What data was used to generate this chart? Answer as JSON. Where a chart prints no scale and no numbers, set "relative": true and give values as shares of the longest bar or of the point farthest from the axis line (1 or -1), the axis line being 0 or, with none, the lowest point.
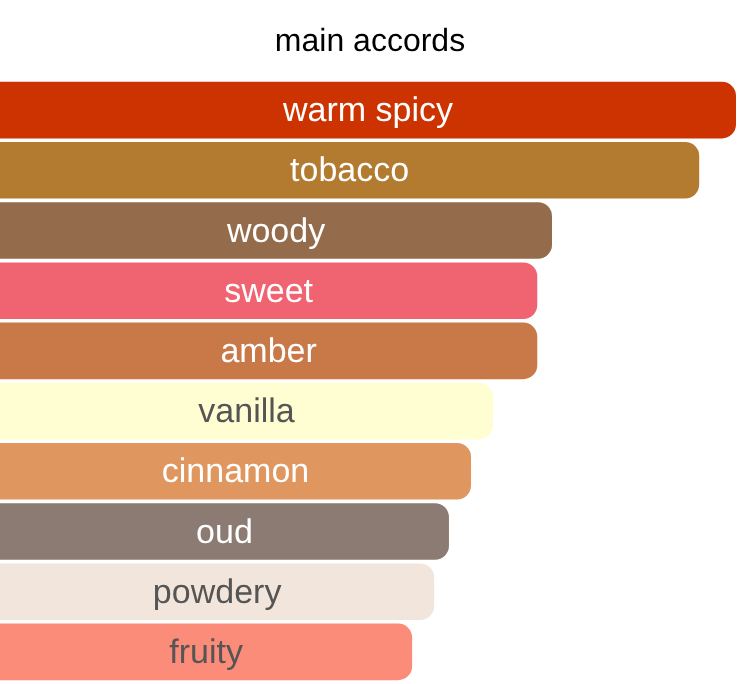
{
  "chart_data": {
    "type": "bar",
    "title": "main accords",
    "orientation": "horizontal",
    "relative": true,
    "categories": [
      "warm spicy",
      "tobacco",
      "woody",
      "sweet",
      "amber",
      "vanilla",
      "cinnamon",
      "oud",
      "powdery",
      "fruity"
    ],
    "values": [
      1,
      0.95,
      0.75,
      0.73,
      0.73,
      0.67,
      0.64,
      0.61,
      0.59,
      0.56
    ],
    "colors": [
      "#cc3300",
      "#b27b30",
      "#946c4c",
      "#ef6470",
      "#c97848",
      "#fefed2",
      "#e0975f",
      "#8c7b72",
      "#f2e6dc",
      "#fc8c7a"
    ]
  }
}
